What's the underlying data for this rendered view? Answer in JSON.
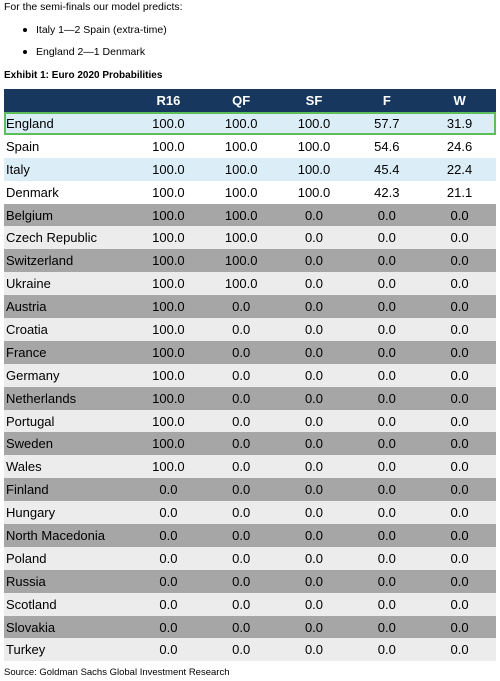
{
  "intro": "For the semi-finals our model predicts:",
  "predictions": [
    "Italy 1—2 Spain (extra-time)",
    "England 2—1 Denmark"
  ],
  "exhibit_title": "Exhibit 1: Euro 2020 Probabilities",
  "table": {
    "columns": [
      "",
      "R16",
      "QF",
      "SF",
      "F",
      "W"
    ],
    "rows": [
      {
        "team": "England",
        "values": [
          "100.0",
          "100.0",
          "100.0",
          "57.7",
          "31.9"
        ],
        "style": "blue",
        "highlight": true
      },
      {
        "team": "Spain",
        "values": [
          "100.0",
          "100.0",
          "100.0",
          "54.6",
          "24.6"
        ],
        "style": "white"
      },
      {
        "team": "Italy",
        "values": [
          "100.0",
          "100.0",
          "100.0",
          "45.4",
          "22.4"
        ],
        "style": "blue"
      },
      {
        "team": "Denmark",
        "values": [
          "100.0",
          "100.0",
          "100.0",
          "42.3",
          "21.1"
        ],
        "style": "white"
      },
      {
        "team": "Belgium",
        "values": [
          "100.0",
          "100.0",
          "0.0",
          "0.0",
          "0.0"
        ],
        "style": "gray"
      },
      {
        "team": "Czech Republic",
        "values": [
          "100.0",
          "100.0",
          "0.0",
          "0.0",
          "0.0"
        ],
        "style": "light"
      },
      {
        "team": "Switzerland",
        "values": [
          "100.0",
          "100.0",
          "0.0",
          "0.0",
          "0.0"
        ],
        "style": "gray"
      },
      {
        "team": "Ukraine",
        "values": [
          "100.0",
          "100.0",
          "0.0",
          "0.0",
          "0.0"
        ],
        "style": "light"
      },
      {
        "team": "Austria",
        "values": [
          "100.0",
          "0.0",
          "0.0",
          "0.0",
          "0.0"
        ],
        "style": "gray"
      },
      {
        "team": "Croatia",
        "values": [
          "100.0",
          "0.0",
          "0.0",
          "0.0",
          "0.0"
        ],
        "style": "light"
      },
      {
        "team": "France",
        "values": [
          "100.0",
          "0.0",
          "0.0",
          "0.0",
          "0.0"
        ],
        "style": "gray"
      },
      {
        "team": "Germany",
        "values": [
          "100.0",
          "0.0",
          "0.0",
          "0.0",
          "0.0"
        ],
        "style": "light"
      },
      {
        "team": "Netherlands",
        "values": [
          "100.0",
          "0.0",
          "0.0",
          "0.0",
          "0.0"
        ],
        "style": "gray"
      },
      {
        "team": "Portugal",
        "values": [
          "100.0",
          "0.0",
          "0.0",
          "0.0",
          "0.0"
        ],
        "style": "light"
      },
      {
        "team": "Sweden",
        "values": [
          "100.0",
          "0.0",
          "0.0",
          "0.0",
          "0.0"
        ],
        "style": "gray"
      },
      {
        "team": "Wales",
        "values": [
          "100.0",
          "0.0",
          "0.0",
          "0.0",
          "0.0"
        ],
        "style": "light"
      },
      {
        "team": "Finland",
        "values": [
          "0.0",
          "0.0",
          "0.0",
          "0.0",
          "0.0"
        ],
        "style": "gray"
      },
      {
        "team": "Hungary",
        "values": [
          "0.0",
          "0.0",
          "0.0",
          "0.0",
          "0.0"
        ],
        "style": "light"
      },
      {
        "team": "North Macedonia",
        "values": [
          "0.0",
          "0.0",
          "0.0",
          "0.0",
          "0.0"
        ],
        "style": "gray"
      },
      {
        "team": "Poland",
        "values": [
          "0.0",
          "0.0",
          "0.0",
          "0.0",
          "0.0"
        ],
        "style": "light"
      },
      {
        "team": "Russia",
        "values": [
          "0.0",
          "0.0",
          "0.0",
          "0.0",
          "0.0"
        ],
        "style": "gray"
      },
      {
        "team": "Scotland",
        "values": [
          "0.0",
          "0.0",
          "0.0",
          "0.0",
          "0.0"
        ],
        "style": "light"
      },
      {
        "team": "Slovakia",
        "values": [
          "0.0",
          "0.0",
          "0.0",
          "0.0",
          "0.0"
        ],
        "style": "gray"
      },
      {
        "team": "Turkey",
        "values": [
          "0.0",
          "0.0",
          "0.0",
          "0.0",
          "0.0"
        ],
        "style": "light"
      }
    ]
  },
  "source": "Source: Goldman Sachs Global Investment Research",
  "colors": {
    "header": "#17375e",
    "blue_row": "#dbeef8",
    "gray_row": "#a6a6a6",
    "light_row": "#ececec",
    "highlight_border": "#5cbf5c"
  }
}
